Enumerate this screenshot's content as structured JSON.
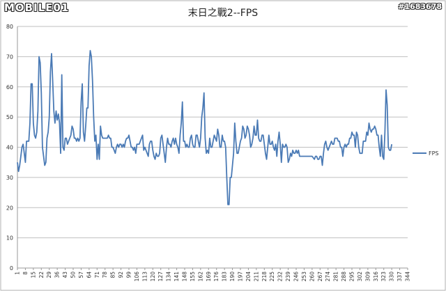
{
  "branding": {
    "logo_text": "MOBILE01",
    "watermark": "#1683678"
  },
  "chart_data": {
    "type": "line",
    "title": "末日之戰2--FPS",
    "xlabel": "",
    "ylabel": "",
    "ylim": [
      0,
      80
    ],
    "yticks": [
      0,
      10,
      20,
      30,
      40,
      50,
      60,
      70,
      80
    ],
    "xlim": [
      1,
      344
    ],
    "xticks": [
      1,
      8,
      15,
      22,
      29,
      36,
      43,
      50,
      57,
      64,
      71,
      78,
      85,
      92,
      99,
      106,
      113,
      120,
      127,
      134,
      141,
      148,
      155,
      162,
      169,
      176,
      183,
      190,
      197,
      204,
      211,
      218,
      225,
      232,
      239,
      246,
      253,
      260,
      267,
      274,
      281,
      288,
      295,
      302,
      309,
      316,
      323,
      330,
      337,
      344
    ],
    "grid": "horizontal",
    "legend": "right",
    "color": "#4a7ab5",
    "series": [
      {
        "name": "FPS",
        "points": [
          [
            1,
            35
          ],
          [
            2,
            32
          ],
          [
            3,
            34
          ],
          [
            5,
            40
          ],
          [
            6,
            41
          ],
          [
            8,
            35
          ],
          [
            9,
            42
          ],
          [
            11,
            42
          ],
          [
            12,
            48
          ],
          [
            13,
            61
          ],
          [
            14,
            61
          ],
          [
            15,
            48
          ],
          [
            16,
            44
          ],
          [
            17,
            43
          ],
          [
            18,
            45
          ],
          [
            19,
            52
          ],
          [
            20,
            70
          ],
          [
            21,
            68
          ],
          [
            22,
            58
          ],
          [
            23,
            40
          ],
          [
            24,
            37
          ],
          [
            25,
            34
          ],
          [
            26,
            35
          ],
          [
            27,
            43
          ],
          [
            28,
            45
          ],
          [
            29,
            50
          ],
          [
            30,
            65
          ],
          [
            31,
            71
          ],
          [
            32,
            62
          ],
          [
            33,
            52
          ],
          [
            34,
            48
          ],
          [
            35,
            52
          ],
          [
            36,
            49
          ],
          [
            37,
            51
          ],
          [
            38,
            48
          ],
          [
            39,
            38
          ],
          [
            40,
            64
          ],
          [
            41,
            40
          ],
          [
            42,
            39
          ],
          [
            43,
            43
          ],
          [
            44,
            43
          ],
          [
            45,
            41
          ],
          [
            46,
            42
          ],
          [
            47,
            43
          ],
          [
            48,
            44
          ],
          [
            49,
            47
          ],
          [
            50,
            46
          ],
          [
            51,
            43
          ],
          [
            52,
            43
          ],
          [
            53,
            42
          ],
          [
            54,
            43
          ],
          [
            55,
            42
          ],
          [
            56,
            43
          ],
          [
            57,
            55
          ],
          [
            58,
            61
          ],
          [
            59,
            45
          ],
          [
            60,
            42
          ],
          [
            61,
            47
          ],
          [
            62,
            53
          ],
          [
            63,
            53
          ],
          [
            64,
            67
          ],
          [
            65,
            72
          ],
          [
            66,
            70
          ],
          [
            67,
            62
          ],
          [
            68,
            50
          ],
          [
            69,
            42
          ],
          [
            70,
            44
          ],
          [
            71,
            36
          ],
          [
            72,
            41
          ],
          [
            73,
            36
          ],
          [
            74,
            47
          ],
          [
            75,
            44
          ],
          [
            76,
            43
          ],
          [
            78,
            43
          ],
          [
            79,
            43
          ],
          [
            80,
            43
          ],
          [
            81,
            44
          ],
          [
            82,
            43
          ],
          [
            83,
            43
          ],
          [
            84,
            40
          ],
          [
            85,
            40
          ],
          [
            86,
            39
          ],
          [
            87,
            38
          ],
          [
            88,
            40
          ],
          [
            89,
            41
          ],
          [
            90,
            40
          ],
          [
            91,
            41
          ],
          [
            92,
            41
          ],
          [
            93,
            40
          ],
          [
            94,
            41
          ],
          [
            95,
            40
          ],
          [
            96,
            42
          ],
          [
            97,
            43
          ],
          [
            98,
            43
          ],
          [
            99,
            44
          ],
          [
            100,
            42
          ],
          [
            101,
            40
          ],
          [
            102,
            40
          ],
          [
            103,
            39
          ],
          [
            104,
            40
          ],
          [
            105,
            38
          ],
          [
            106,
            41
          ],
          [
            107,
            41
          ],
          [
            108,
            41
          ],
          [
            109,
            42
          ],
          [
            110,
            43
          ],
          [
            111,
            44
          ],
          [
            112,
            39
          ],
          [
            113,
            40
          ],
          [
            114,
            39
          ],
          [
            115,
            38
          ],
          [
            116,
            37
          ],
          [
            117,
            41
          ],
          [
            118,
            42
          ],
          [
            119,
            42
          ],
          [
            120,
            39
          ],
          [
            121,
            37
          ],
          [
            122,
            36
          ],
          [
            123,
            38
          ],
          [
            124,
            37
          ],
          [
            125,
            37
          ],
          [
            126,
            38
          ],
          [
            127,
            43
          ],
          [
            128,
            44
          ],
          [
            129,
            41
          ],
          [
            130,
            38
          ],
          [
            131,
            35
          ],
          [
            132,
            40
          ],
          [
            133,
            43
          ],
          [
            134,
            41
          ],
          [
            135,
            41
          ],
          [
            136,
            40
          ],
          [
            137,
            42
          ],
          [
            138,
            43
          ],
          [
            139,
            41
          ],
          [
            140,
            43
          ],
          [
            141,
            41
          ],
          [
            142,
            40
          ],
          [
            143,
            38
          ],
          [
            144,
            44
          ],
          [
            145,
            48
          ],
          [
            146,
            55
          ],
          [
            147,
            42
          ],
          [
            148,
            42
          ],
          [
            149,
            40
          ],
          [
            150,
            41
          ],
          [
            151,
            40
          ],
          [
            152,
            40
          ],
          [
            153,
            43
          ],
          [
            154,
            44
          ],
          [
            155,
            41
          ],
          [
            156,
            40
          ],
          [
            157,
            40
          ],
          [
            158,
            44
          ],
          [
            159,
            44
          ],
          [
            160,
            42
          ],
          [
            161,
            40
          ],
          [
            162,
            43
          ],
          [
            163,
            50
          ],
          [
            164,
            53
          ],
          [
            165,
            58
          ],
          [
            166,
            43
          ],
          [
            167,
            38
          ],
          [
            168,
            39
          ],
          [
            169,
            38
          ],
          [
            170,
            43
          ],
          [
            171,
            40
          ],
          [
            172,
            40
          ],
          [
            173,
            42
          ],
          [
            174,
            44
          ],
          [
            175,
            43
          ],
          [
            176,
            42
          ],
          [
            177,
            46
          ],
          [
            178,
            44
          ],
          [
            179,
            40
          ],
          [
            180,
            40
          ],
          [
            181,
            44
          ],
          [
            182,
            42
          ],
          [
            183,
            42
          ],
          [
            184,
            40
          ],
          [
            185,
            30
          ],
          [
            186,
            21
          ],
          [
            187,
            21
          ],
          [
            188,
            30
          ],
          [
            189,
            30
          ],
          [
            190,
            34
          ],
          [
            191,
            38
          ],
          [
            192,
            48
          ],
          [
            193,
            42
          ],
          [
            194,
            38
          ],
          [
            195,
            38
          ],
          [
            196,
            40
          ],
          [
            197,
            42
          ],
          [
            198,
            43
          ],
          [
            199,
            47
          ],
          [
            200,
            46
          ],
          [
            201,
            43
          ],
          [
            202,
            44
          ],
          [
            203,
            47
          ],
          [
            204,
            46
          ],
          [
            205,
            44
          ],
          [
            206,
            40
          ],
          [
            207,
            41
          ],
          [
            208,
            43
          ],
          [
            209,
            47
          ],
          [
            210,
            44
          ],
          [
            211,
            44
          ],
          [
            212,
            49
          ],
          [
            213,
            43
          ],
          [
            214,
            42
          ],
          [
            215,
            42
          ],
          [
            216,
            44
          ],
          [
            217,
            44
          ],
          [
            218,
            41
          ],
          [
            219,
            38
          ],
          [
            220,
            36
          ],
          [
            221,
            40
          ],
          [
            222,
            44
          ],
          [
            223,
            41
          ],
          [
            224,
            41
          ],
          [
            225,
            42
          ],
          [
            226,
            40
          ],
          [
            227,
            39
          ],
          [
            228,
            41
          ],
          [
            229,
            37
          ],
          [
            230,
            42
          ],
          [
            231,
            45
          ],
          [
            232,
            41
          ],
          [
            233,
            35
          ],
          [
            234,
            41
          ],
          [
            235,
            40
          ],
          [
            236,
            40
          ],
          [
            237,
            41
          ],
          [
            238,
            40
          ],
          [
            239,
            35
          ],
          [
            240,
            36
          ],
          [
            241,
            38
          ],
          [
            242,
            37
          ],
          [
            243,
            39
          ],
          [
            244,
            38
          ],
          [
            245,
            38
          ],
          [
            246,
            39
          ],
          [
            247,
            38
          ],
          [
            248,
            39
          ],
          [
            249,
            37
          ],
          [
            250,
            37
          ],
          [
            252,
            37
          ],
          [
            254,
            37
          ],
          [
            256,
            37
          ],
          [
            258,
            37
          ],
          [
            260,
            37
          ],
          [
            262,
            36
          ],
          [
            263,
            37
          ],
          [
            264,
            37
          ],
          [
            265,
            36
          ],
          [
            266,
            36
          ],
          [
            267,
            37
          ],
          [
            268,
            37
          ],
          [
            269,
            34
          ],
          [
            270,
            38
          ],
          [
            271,
            41
          ],
          [
            272,
            42
          ],
          [
            273,
            40
          ],
          [
            274,
            39
          ],
          [
            275,
            40
          ],
          [
            276,
            41
          ],
          [
            277,
            42
          ],
          [
            278,
            41
          ],
          [
            279,
            41
          ],
          [
            280,
            43
          ],
          [
            281,
            43
          ],
          [
            282,
            43
          ],
          [
            283,
            42
          ],
          [
            284,
            42
          ],
          [
            285,
            40
          ],
          [
            286,
            40
          ],
          [
            287,
            37
          ],
          [
            288,
            40
          ],
          [
            289,
            41
          ],
          [
            290,
            40
          ],
          [
            291,
            41
          ],
          [
            292,
            41
          ],
          [
            293,
            43
          ],
          [
            294,
            43
          ],
          [
            295,
            45
          ],
          [
            296,
            44
          ],
          [
            297,
            44
          ],
          [
            298,
            40
          ],
          [
            299,
            45
          ],
          [
            300,
            44
          ],
          [
            301,
            40
          ],
          [
            302,
            38
          ],
          [
            303,
            38
          ],
          [
            304,
            38
          ],
          [
            305,
            42
          ],
          [
            306,
            42
          ],
          [
            307,
            42
          ],
          [
            308,
            45
          ],
          [
            309,
            44
          ],
          [
            310,
            48
          ],
          [
            311,
            46
          ],
          [
            312,
            45
          ],
          [
            313,
            46
          ],
          [
            314,
            46
          ],
          [
            315,
            47
          ],
          [
            316,
            46
          ],
          [
            317,
            44
          ],
          [
            318,
            44
          ],
          [
            319,
            40
          ],
          [
            320,
            37
          ],
          [
            321,
            44
          ],
          [
            322,
            37
          ],
          [
            323,
            36
          ],
          [
            324,
            45
          ],
          [
            325,
            59
          ],
          [
            326,
            54
          ],
          [
            327,
            40
          ],
          [
            328,
            39
          ],
          [
            329,
            39
          ],
          [
            330,
            41
          ]
        ]
      }
    ]
  }
}
